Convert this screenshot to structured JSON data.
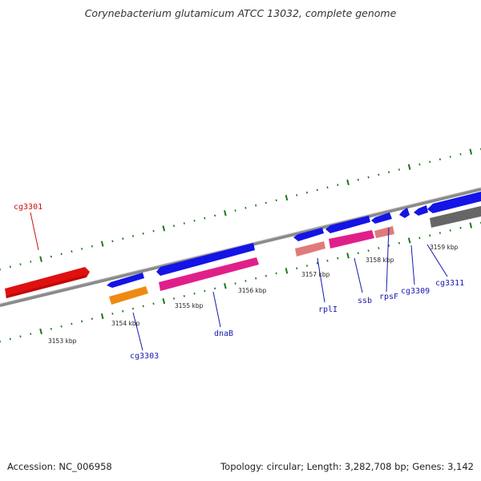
{
  "title": "Corynebacterium glutamicum ATCC 13032, complete genome",
  "accession": "Accession: NC_006958",
  "summary": "Topology: circular; Length: 3,282,708 bp; Genes: 3,142",
  "colors": {
    "backbone": "#888888",
    "ticks": "#1a7a1a",
    "gene_blue": "#1414e6",
    "gene_magenta": "#e0208a",
    "gene_pink": "#e07a7a",
    "gene_orange": "#ee8a10",
    "gene_red": "#e01010",
    "gene_gray": "#666666",
    "label_blue": "#1818b0",
    "label_red": "#cc1010"
  },
  "kbp_labels": [
    "3153 kbp",
    "3154 kbp",
    "3155 kbp",
    "3156 kbp",
    "3157 kbp",
    "3158 kbp",
    "3159 kbp"
  ],
  "gene_labels": [
    {
      "name": "cg3301",
      "color": "red"
    },
    {
      "name": "cg3303",
      "color": "blue"
    },
    {
      "name": "dnaB",
      "color": "blue"
    },
    {
      "name": "rplI",
      "color": "blue"
    },
    {
      "name": "ssb",
      "color": "blue"
    },
    {
      "name": "rpsF",
      "color": "blue"
    },
    {
      "name": "cg3309",
      "color": "blue"
    },
    {
      "name": "cg3311",
      "color": "blue"
    }
  ]
}
